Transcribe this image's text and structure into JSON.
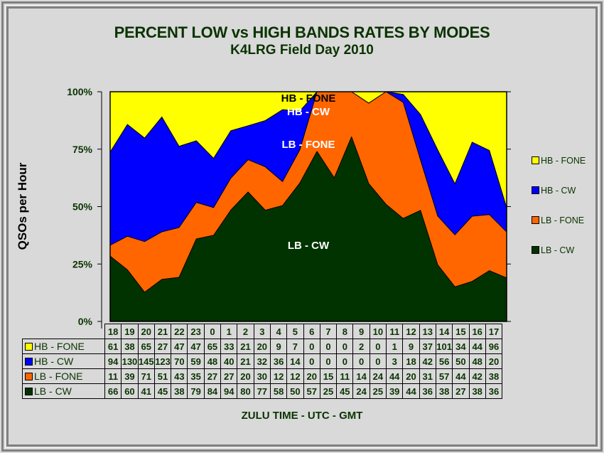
{
  "chart_data": {
    "type": "area",
    "stacking": "percent",
    "title": "PERCENT LOW vs HIGH BANDS RATES BY MODES",
    "subtitle": "K4LRG Field Day 2010",
    "xlabel": "ZULU TIME  -  UTC  -  GMT",
    "ylabel": "QSOs per Hour",
    "ylim": [
      0,
      100
    ],
    "yticks": [
      "0%",
      "25%",
      "50%",
      "75%",
      "100%"
    ],
    "categories": [
      "18",
      "19",
      "20",
      "21",
      "22",
      "23",
      "0",
      "1",
      "2",
      "3",
      "4",
      "5",
      "6",
      "7",
      "8",
      "9",
      "10",
      "11",
      "12",
      "13",
      "14",
      "15",
      "16",
      "17"
    ],
    "series": [
      {
        "name": "LB - CW",
        "color": "#003300",
        "values": [
          66,
          60,
          41,
          45,
          38,
          79,
          84,
          94,
          80,
          77,
          58,
          50,
          57,
          25,
          45,
          24,
          25,
          39,
          44,
          36,
          38,
          27,
          38,
          36
        ]
      },
      {
        "name": "LB - FONE",
        "color": "#ff6600",
        "values": [
          11,
          39,
          71,
          51,
          43,
          35,
          27,
          27,
          20,
          30,
          12,
          12,
          20,
          15,
          11,
          14,
          24,
          44,
          20,
          31,
          57,
          44,
          42,
          38
        ]
      },
      {
        "name": "HB - CW",
        "color": "#0000ff",
        "values": [
          94,
          130,
          145,
          123,
          70,
          59,
          48,
          40,
          21,
          32,
          36,
          14,
          0,
          0,
          0,
          0,
          0,
          3,
          18,
          42,
          56,
          50,
          48,
          20
        ]
      },
      {
        "name": "HB - FONE",
        "color": "#ffff00",
        "values": [
          61,
          38,
          65,
          27,
          47,
          47,
          65,
          33,
          21,
          20,
          9,
          7,
          0,
          0,
          0,
          2,
          0,
          1,
          9,
          37,
          101,
          34,
          44,
          96
        ]
      }
    ],
    "area_labels": [
      {
        "text": "HB - FONE",
        "color": "#000000"
      },
      {
        "text": "HB - CW",
        "color": "#ffffff"
      },
      {
        "text": "LB - FONE",
        "color": "#ffffff"
      },
      {
        "text": "LB - CW",
        "color": "#ffffff"
      }
    ],
    "legend": {
      "placement": "right",
      "items": [
        "HB - FONE",
        "HB - CW",
        "LB - FONE",
        "LB - CW"
      ]
    },
    "data_table": {
      "row_order": [
        "HB - FONE",
        "HB - CW",
        "LB - FONE",
        "LB - CW"
      ]
    }
  }
}
